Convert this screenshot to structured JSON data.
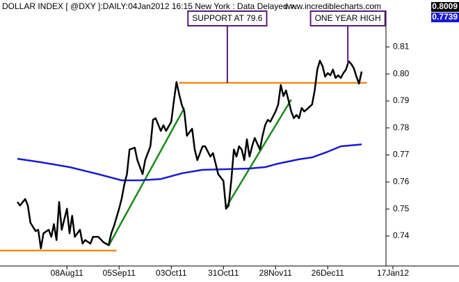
{
  "chart_data": {
    "type": "line",
    "title": "DOLLAR INDEX [ @DXY ]:DAILY:04Jan2012 16:15 New York  : Data Delayed >..",
    "source": "www.incrediblecharts.com",
    "readouts": [
      {
        "label": "0.8009",
        "color": "#000000"
      },
      {
        "label": "0.7739",
        "color": "#1a1ad0"
      }
    ],
    "xlim": [
      -6.67,
      141.33
    ],
    "ylim": [
      0.7289,
      0.8235
    ],
    "xticks": [
      {
        "value": 19,
        "label": "08Aug11"
      },
      {
        "value": 39,
        "label": "05Sep11"
      },
      {
        "value": 59,
        "label": "03Oct11"
      },
      {
        "value": 79,
        "label": "31Oct11"
      },
      {
        "value": 99,
        "label": "28Nov11"
      },
      {
        "value": 119,
        "label": "26Dec11"
      },
      {
        "value": 144,
        "label": "17Jan12"
      }
    ],
    "yticks": [
      0.74,
      0.75,
      0.76,
      0.77,
      0.78,
      0.79,
      {
        "value": 0.8,
        "label": "0.80"
      },
      0.81
    ],
    "series": [
      {
        "color": "#000000",
        "x": [
          0,
          1,
          3,
          4,
          5,
          7,
          8,
          9,
          10,
          12,
          13,
          14,
          15,
          16,
          17,
          19,
          20,
          21,
          22,
          24,
          25,
          26,
          28,
          29,
          31,
          33,
          35,
          36,
          37,
          39,
          40,
          41,
          42,
          43,
          45,
          46,
          48,
          49,
          51,
          52,
          53,
          55,
          56,
          57,
          59,
          60,
          61,
          62,
          63,
          64,
          65,
          67,
          68,
          69,
          71,
          72,
          74,
          75,
          76,
          77,
          79,
          80,
          81,
          82,
          83,
          84,
          85,
          86,
          87,
          88,
          89,
          90,
          91,
          93,
          94,
          95,
          96,
          97,
          99,
          100,
          101,
          102,
          103,
          105,
          106,
          107,
          108,
          109,
          110,
          111,
          113,
          114,
          115,
          116,
          117,
          118,
          119,
          120,
          121,
          122,
          123,
          124,
          125,
          126,
          127,
          128,
          129,
          130,
          131,
          132
        ],
        "values": [
          0.7526,
          0.7513,
          0.7537,
          0.7513,
          0.7449,
          0.7418,
          0.7423,
          0.7354,
          0.741,
          0.7423,
          0.7397,
          0.7444,
          0.7385,
          0.7526,
          0.7423,
          0.7501,
          0.741,
          0.7475,
          0.7397,
          0.7423,
          0.7372,
          0.7385,
          0.7372,
          0.7397,
          0.7397,
          0.7377,
          0.7366,
          0.741,
          0.7436,
          0.7501,
          0.7539,
          0.7591,
          0.7629,
          0.772,
          0.7727,
          0.7681,
          0.7629,
          0.7681,
          0.7732,
          0.783,
          0.7836,
          0.7789,
          0.781,
          0.7789,
          0.7823,
          0.79,
          0.797,
          0.7926,
          0.7887,
          0.7861,
          0.7771,
          0.7797,
          0.772,
          0.7681,
          0.7732,
          0.7732,
          0.7694,
          0.7707,
          0.7668,
          0.7629,
          0.7604,
          0.7501,
          0.7513,
          0.7604,
          0.772,
          0.7694,
          0.7732,
          0.772,
          0.7681,
          0.7758,
          0.7694,
          0.7732,
          0.7763,
          0.772,
          0.7771,
          0.781,
          0.783,
          0.7823,
          0.7861,
          0.7887,
          0.7959,
          0.7918,
          0.7939,
          0.7861,
          0.7836,
          0.7848,
          0.7836,
          0.7874,
          0.7861,
          0.7869,
          0.7887,
          0.7939,
          0.8016,
          0.8049,
          0.8029,
          0.799,
          0.8003,
          0.7995,
          0.8016,
          0.7985,
          0.7995,
          0.7985,
          0.8003,
          0.8016,
          0.8047,
          0.8037,
          0.8021,
          0.799,
          0.7964,
          0.8009
        ]
      },
      {
        "color": "#1a1ad0",
        "x": [
          0,
          9,
          20,
          31,
          40,
          47,
          55,
          63,
          71,
          79,
          89,
          95,
          100,
          108,
          113,
          119,
          124,
          132
        ],
        "values": [
          0.7686,
          0.7673,
          0.7655,
          0.7629,
          0.7606,
          0.7606,
          0.7611,
          0.7632,
          0.7645,
          0.7647,
          0.765,
          0.7655,
          0.7668,
          0.7684,
          0.7691,
          0.7712,
          0.7732,
          0.7739
        ]
      }
    ],
    "lines": [
      {
        "color": "#f08a1c",
        "x": [
          -6.67,
          38
        ],
        "values": [
          0.7346,
          0.7346
        ]
      },
      {
        "color": "#f08a1c",
        "x": [
          62,
          134
        ],
        "values": [
          0.7967,
          0.7967
        ]
      },
      {
        "color": "#1a8a1a",
        "x": [
          35,
          64
        ],
        "values": [
          0.7364,
          0.7874
        ]
      },
      {
        "color": "#1a8a1a",
        "x": [
          80,
          105
        ],
        "values": [
          0.7506,
          0.7905
        ]
      }
    ],
    "annotations": [
      {
        "text": "SUPPORT AT 79.6",
        "x": 80.5,
        "y": 0.7967
      },
      {
        "text": "ONE YEAR HIGH",
        "x": 126.7,
        "y": 0.8036
      }
    ]
  }
}
